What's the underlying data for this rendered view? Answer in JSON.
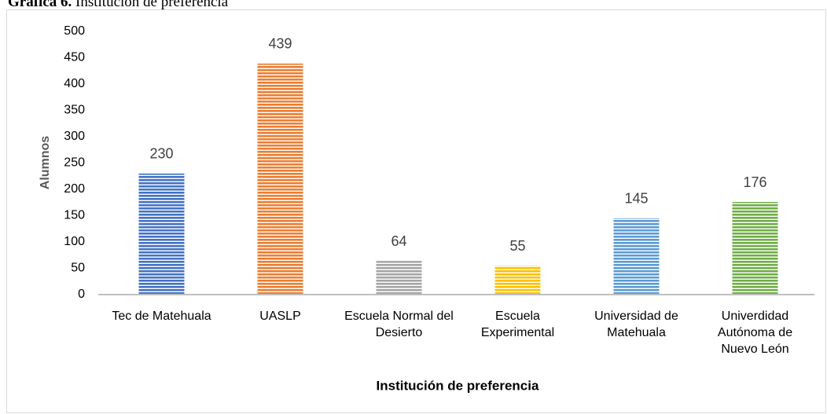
{
  "chart_data": {
    "type": "bar",
    "title_label": "Gráfica 6.",
    "title": "Institución de preferencia",
    "x_label": "Institución de preferencia",
    "y_label": "Alumnos",
    "categories": [
      "Tec de Matehuala",
      "UASLP",
      "Escuela Normal del Desierto",
      "Escuela Experimental",
      "Universidad de Matehuala",
      "Univerdidad Autónoma de Nuevo León"
    ],
    "values": [
      230,
      439,
      64,
      55,
      145,
      176
    ],
    "colors": [
      "#4472c4",
      "#ed7d31",
      "#a5a5a5",
      "#ffc000",
      "#5b9bd5",
      "#70ad47"
    ],
    "ylim": [
      0,
      500
    ],
    "yticks": [
      0,
      50,
      100,
      150,
      200,
      250,
      300,
      350,
      400,
      450,
      500
    ],
    "grid": false
  }
}
